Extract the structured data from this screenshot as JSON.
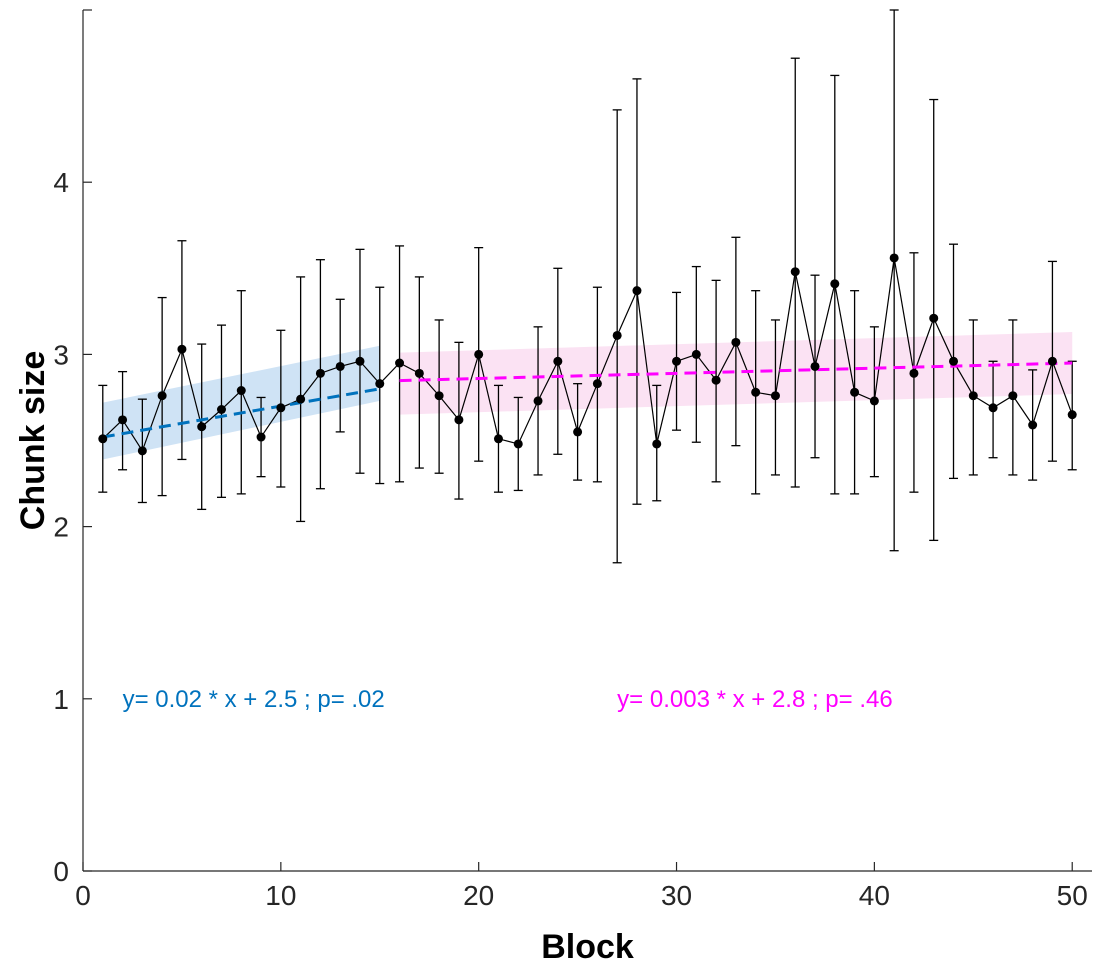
{
  "chart_data": {
    "type": "scatter",
    "xlabel": "Block",
    "ylabel": "Chunk size",
    "xlim": [
      0,
      51
    ],
    "ylim": [
      0,
      5
    ],
    "xticks": [
      0,
      10,
      20,
      30,
      40,
      50
    ],
    "yticks": [
      0,
      1,
      2,
      3,
      4
    ],
    "grid": false,
    "colors": {
      "data": "#000000",
      "fit1": "#0072bd",
      "fit1_band": "#cfe3f5",
      "fit2": "#ff00ff",
      "fit2_band": "#fbe2f3",
      "axis": "#262626"
    },
    "series": [
      {
        "x": [
          1,
          2,
          3,
          4,
          5,
          6,
          7,
          8,
          9,
          10,
          11,
          12,
          13,
          14,
          15,
          16,
          17,
          18,
          19,
          20,
          21,
          22,
          23,
          24,
          25,
          26,
          27,
          28,
          29,
          30,
          31,
          32,
          33,
          34,
          35,
          36,
          37,
          38,
          39,
          40,
          41,
          42,
          43,
          44,
          45,
          46,
          47,
          48,
          49,
          50
        ],
        "y": [
          2.51,
          2.62,
          2.44,
          2.76,
          3.03,
          2.58,
          2.68,
          2.79,
          2.52,
          2.69,
          2.74,
          2.89,
          2.93,
          2.96,
          2.83,
          2.95,
          2.89,
          2.76,
          2.62,
          3.0,
          2.51,
          2.48,
          2.73,
          2.96,
          2.55,
          2.83,
          3.11,
          3.37,
          2.48,
          2.96,
          3.0,
          2.85,
          3.07,
          2.78,
          2.76,
          3.48,
          2.93,
          3.41,
          2.78,
          2.73,
          3.56,
          2.89,
          3.21,
          2.96,
          2.76,
          2.69,
          2.76,
          2.59,
          2.96,
          2.65
        ],
        "err_low": [
          2.2,
          2.33,
          2.14,
          2.18,
          2.39,
          2.1,
          2.17,
          2.19,
          2.29,
          2.23,
          2.03,
          2.22,
          2.55,
          2.31,
          2.25,
          2.26,
          2.34,
          2.31,
          2.16,
          2.38,
          2.2,
          2.21,
          2.3,
          2.42,
          2.27,
          2.26,
          1.79,
          2.13,
          2.15,
          2.56,
          2.49,
          2.26,
          2.47,
          2.19,
          2.3,
          2.23,
          2.4,
          2.19,
          2.19,
          2.29,
          1.86,
          2.2,
          1.92,
          2.28,
          2.3,
          2.4,
          2.3,
          2.27,
          2.38,
          2.33
        ],
        "err_high": [
          2.82,
          2.9,
          2.74,
          3.33,
          3.66,
          3.06,
          3.17,
          3.37,
          2.75,
          3.14,
          3.45,
          3.55,
          3.32,
          3.61,
          3.39,
          3.63,
          3.45,
          3.2,
          3.07,
          3.62,
          2.82,
          2.75,
          3.16,
          3.5,
          2.83,
          3.39,
          4.42,
          4.6,
          2.82,
          3.36,
          3.51,
          3.43,
          3.68,
          3.37,
          3.2,
          4.72,
          3.46,
          4.62,
          3.37,
          3.16,
          5.0,
          3.59,
          4.48,
          3.64,
          3.2,
          2.96,
          3.2,
          2.91,
          3.54,
          2.96
        ]
      }
    ],
    "fits": [
      {
        "x_range": [
          1,
          15
        ],
        "slope": 0.02,
        "intercept": 2.5,
        "band": {
          "x": [
            1,
            15
          ],
          "lower": [
            2.39,
            2.73
          ],
          "upper": [
            2.72,
            3.05
          ]
        },
        "label": "y= 0.02 * x + 2.5 ; p= .02",
        "label_pos": [
          2,
          1.0
        ]
      },
      {
        "x_range": [
          16,
          50
        ],
        "slope": 0.003,
        "intercept": 2.8,
        "band": {
          "x": [
            16,
            50
          ],
          "lower": [
            2.65,
            2.77
          ],
          "upper": [
            3.01,
            3.13
          ]
        },
        "label": "y= 0.003 * x + 2.8 ; p= .46",
        "label_pos": [
          27,
          1.0
        ]
      }
    ]
  }
}
